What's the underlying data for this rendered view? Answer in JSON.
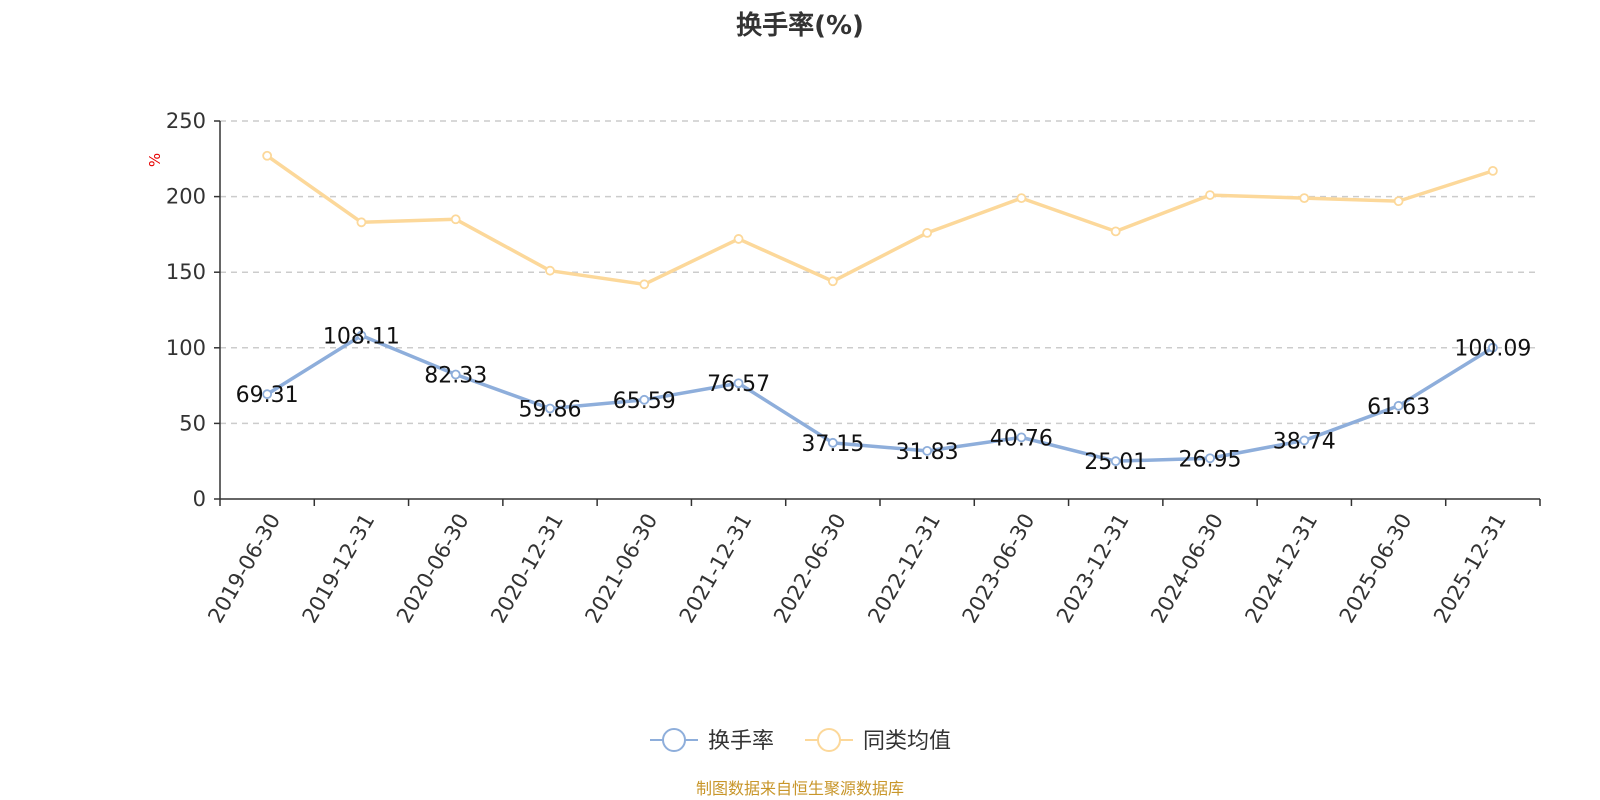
{
  "chart_data": {
    "type": "line",
    "title": "换手率(%)",
    "ylabel": "%",
    "xlabel": "",
    "ylim": [
      0,
      250
    ],
    "yticks": [
      0,
      50,
      100,
      150,
      200,
      250
    ],
    "grid": true,
    "legend_position": "bottom-center",
    "categories": [
      "2019-06-30",
      "2019-12-31",
      "2020-06-30",
      "2020-12-31",
      "2021-06-30",
      "2021-12-31",
      "2022-06-30",
      "2022-12-31",
      "2023-06-30",
      "2023-12-31",
      "2024-06-30",
      "2024-12-31",
      "2025-06-30",
      "2025-12-31"
    ],
    "series": [
      {
        "name": "换手率",
        "color": "#8eaedb",
        "show_labels": true,
        "values": [
          69.31,
          108.11,
          82.33,
          59.86,
          65.59,
          76.57,
          37.15,
          31.83,
          40.76,
          25.01,
          26.95,
          38.74,
          61.63,
          100.09
        ]
      },
      {
        "name": "同类均值",
        "color": "#fcd89a",
        "show_labels": false,
        "values": [
          227,
          183,
          185,
          151,
          142,
          172,
          144,
          176,
          199,
          177,
          201,
          199,
          197,
          217
        ]
      }
    ]
  },
  "footer": {
    "source": "制图数据来自恒生聚源数据库"
  }
}
